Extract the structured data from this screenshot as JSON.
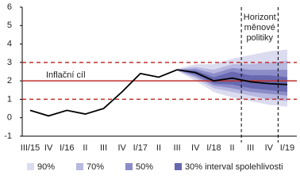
{
  "chart_data": {
    "type": "fan",
    "categories": [
      "III/15",
      "IV",
      "I/16",
      "II",
      "III",
      "IV",
      "I/17",
      "II",
      "III",
      "IV",
      "I/18",
      "II",
      "III",
      "IV",
      "I/19"
    ],
    "ylim": [
      -1,
      6
    ],
    "yticks": [
      -1,
      0,
      1,
      2,
      3,
      4,
      5,
      6
    ],
    "line": {
      "color": "#000000",
      "values": [
        0.4,
        0.1,
        0.4,
        0.2,
        0.5,
        1.4,
        2.4,
        2.2,
        2.6,
        2.45,
        2.0,
        2.15,
        1.95,
        1.85,
        1.8
      ]
    },
    "bands": [
      {
        "name": "90%",
        "color": "#dcdcf0",
        "lower": [
          null,
          null,
          null,
          null,
          null,
          null,
          null,
          null,
          2.55,
          2.0,
          1.4,
          1.1,
          0.9,
          0.7,
          0.6
        ],
        "upper": [
          null,
          null,
          null,
          null,
          null,
          null,
          null,
          null,
          2.65,
          2.9,
          2.9,
          3.2,
          3.4,
          3.6,
          3.7
        ]
      },
      {
        "name": "70%",
        "color": "#b8b8e0",
        "lower": [
          null,
          null,
          null,
          null,
          null,
          null,
          null,
          null,
          2.57,
          2.15,
          1.6,
          1.4,
          1.2,
          1.0,
          0.9
        ],
        "upper": [
          null,
          null,
          null,
          null,
          null,
          null,
          null,
          null,
          2.63,
          2.75,
          2.6,
          2.9,
          2.9,
          3.0,
          3.1
        ]
      },
      {
        "name": "50%",
        "color": "#8c8cc8",
        "lower": [
          null,
          null,
          null,
          null,
          null,
          null,
          null,
          null,
          2.58,
          2.25,
          1.75,
          1.6,
          1.4,
          1.3,
          1.2
        ],
        "upper": [
          null,
          null,
          null,
          null,
          null,
          null,
          null,
          null,
          2.62,
          2.65,
          2.4,
          2.7,
          2.6,
          2.6,
          2.6
        ]
      },
      {
        "name": "30% interval spolehlivosti",
        "color": "#6868b0",
        "lower": [
          null,
          null,
          null,
          null,
          null,
          null,
          null,
          null,
          2.59,
          2.35,
          1.85,
          1.8,
          1.6,
          1.5,
          1.4
        ],
        "upper": [
          null,
          null,
          null,
          null,
          null,
          null,
          null,
          null,
          2.61,
          2.55,
          2.2,
          2.5,
          2.3,
          2.3,
          2.2
        ]
      }
    ],
    "target": {
      "label": "Inflační cíl",
      "value": 2,
      "color": "#c0312b",
      "tolerance": [
        1,
        3
      ]
    },
    "horizon_label": [
      "Horizont",
      "měnové",
      "politiky"
    ]
  }
}
